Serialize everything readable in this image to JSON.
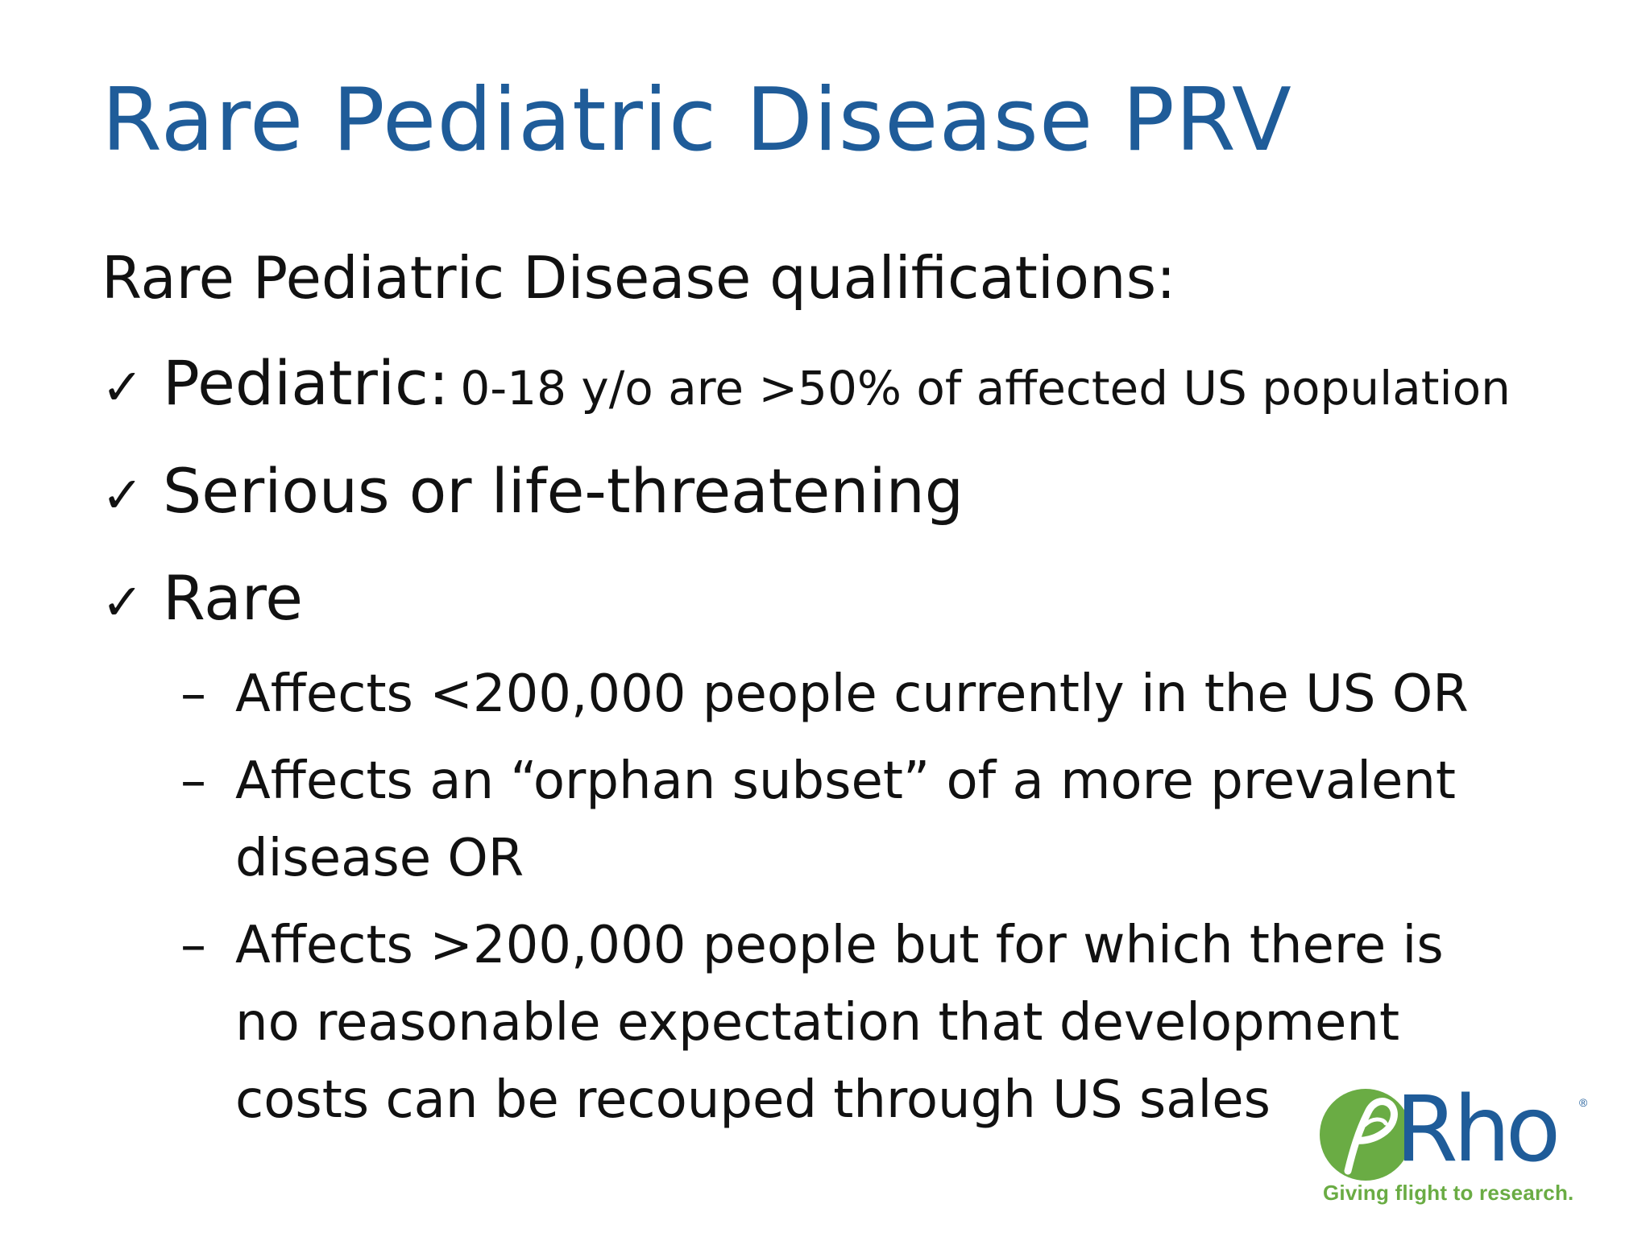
{
  "slide": {
    "title": "Rare Pediatric Disease PRV",
    "lead": "Rare Pediatric Disease qualifications:",
    "checklist": [
      {
        "icon": "checkmark-icon",
        "label": "Pediatric:",
        "detail": "0-18 y/o are >50% of affected US population"
      },
      {
        "icon": "checkmark-icon",
        "label": "Serious or life-threatening",
        "detail": ""
      },
      {
        "icon": "checkmark-icon",
        "label": "Rare",
        "detail": "",
        "subitems": [
          {
            "dash": "–",
            "text": "Affects <200,000 people currently in the US OR"
          },
          {
            "dash": "–",
            "text": "Affects an “orphan subset” of a more prevalent disease OR"
          },
          {
            "dash": "–",
            "text": "Affects >200,000 people but for which there is no reasonable expectation that development costs can be recouped through US sales"
          }
        ]
      }
    ]
  },
  "logo": {
    "name": "Rho",
    "registered_mark": "®",
    "tagline": "Giving flight to research.",
    "colors": {
      "brand_blue": "#1f5c99",
      "brand_green": "#6aac44"
    }
  },
  "colors": {
    "title": "#1f5c99",
    "text": "#111111",
    "background": "#ffffff"
  }
}
